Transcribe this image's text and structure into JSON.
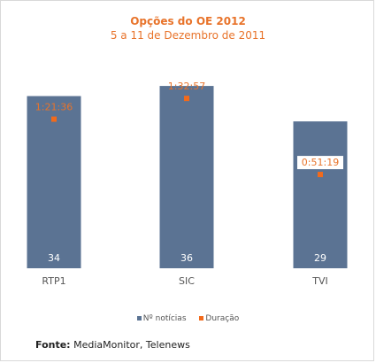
{
  "chart_data": {
    "type": "bar",
    "title": "Opções do OE 2012",
    "subtitle": "5 a 11 de Dezembro de 2011",
    "categories": [
      "RTP1",
      "SIC",
      "TVI"
    ],
    "series": [
      {
        "name": "Nº notícias",
        "values": [
          34,
          36,
          29
        ],
        "color": "#5b7393"
      },
      {
        "name": "Duração",
        "values": [
          "1:21:36",
          "1:32:57",
          "0:51:19"
        ],
        "color": "#f26a1b"
      }
    ],
    "duration_seconds": [
      4896,
      5577,
      3079
    ],
    "legend_position": "bottom",
    "grid": false
  },
  "source": {
    "label": "Fonte:",
    "text": " MediaMonitor, Telenews"
  }
}
